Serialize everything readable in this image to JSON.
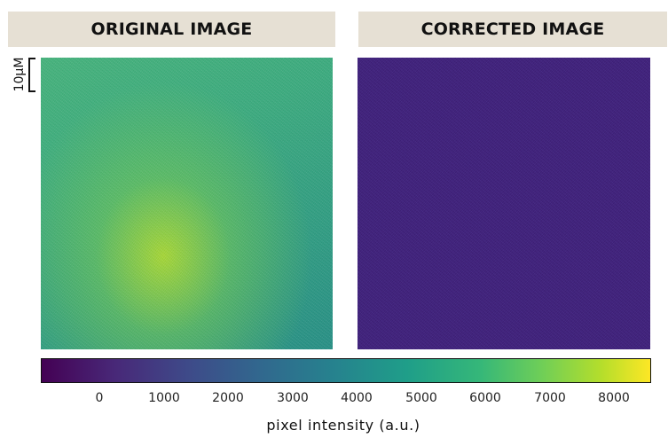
{
  "panels": {
    "left_title": "ORIGINAL IMAGE",
    "right_title": "CORRECTED IMAGE"
  },
  "scale_bar": {
    "label": "10μM"
  },
  "colorbar": {
    "label": "pixel intensity (a.u.)",
    "colormap": "viridis",
    "ticks": [
      "0",
      "1000",
      "2000",
      "3000",
      "4000",
      "5000",
      "6000",
      "7000",
      "8000"
    ]
  },
  "colors": {
    "header_background": "#e6e0d4",
    "original_dominant": "#3fae82",
    "corrected_dominant": "#44257f"
  }
}
